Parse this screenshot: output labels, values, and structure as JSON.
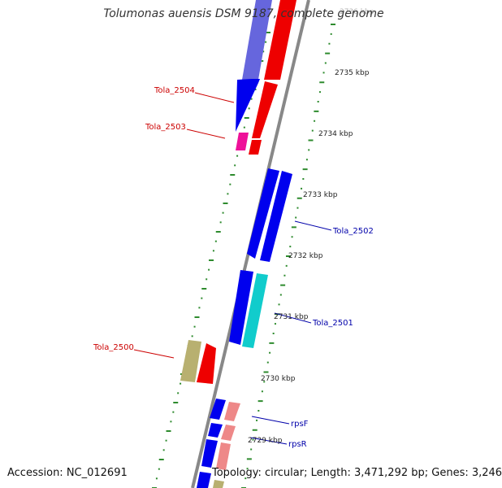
{
  "title": "Tolumonas auensis DSM 9187, complete genome",
  "footer": {
    "accession": "Accession: NC_012691",
    "summary": "Topology: circular; Length: 3,471,292 bp; Genes: 3,246"
  },
  "colors": {
    "backbone": "#888888",
    "tick": "#2e8b2e",
    "label_forward": "#cc0000",
    "label_reverse": "#0000aa",
    "gene_blue": "#0000ee",
    "gene_red": "#ee0000",
    "gene_pink": "#ee1199",
    "gene_cyan": "#11cccc",
    "gene_khaki": "#b8b070",
    "gene_salmon": "#ee8888",
    "gene_faded_blue": "#6666dd"
  },
  "scale_labels": [
    "2736 kbp",
    "2735 kbp",
    "2734 kbp",
    "2733 kbp",
    "2732 kbp",
    "2731 kbp",
    "2730 kbp",
    "2729 kbp"
  ],
  "gene_labels": [
    {
      "text": "Tola_2504",
      "strand": "forward"
    },
    {
      "text": "Tola_2503",
      "strand": "forward"
    },
    {
      "text": "Tola_2502",
      "strand": "reverse"
    },
    {
      "text": "Tola_2501",
      "strand": "reverse"
    },
    {
      "text": "Tola_2500",
      "strand": "forward"
    },
    {
      "text": "rpsF",
      "strand": "reverse"
    },
    {
      "text": "rpsR",
      "strand": "reverse"
    }
  ]
}
